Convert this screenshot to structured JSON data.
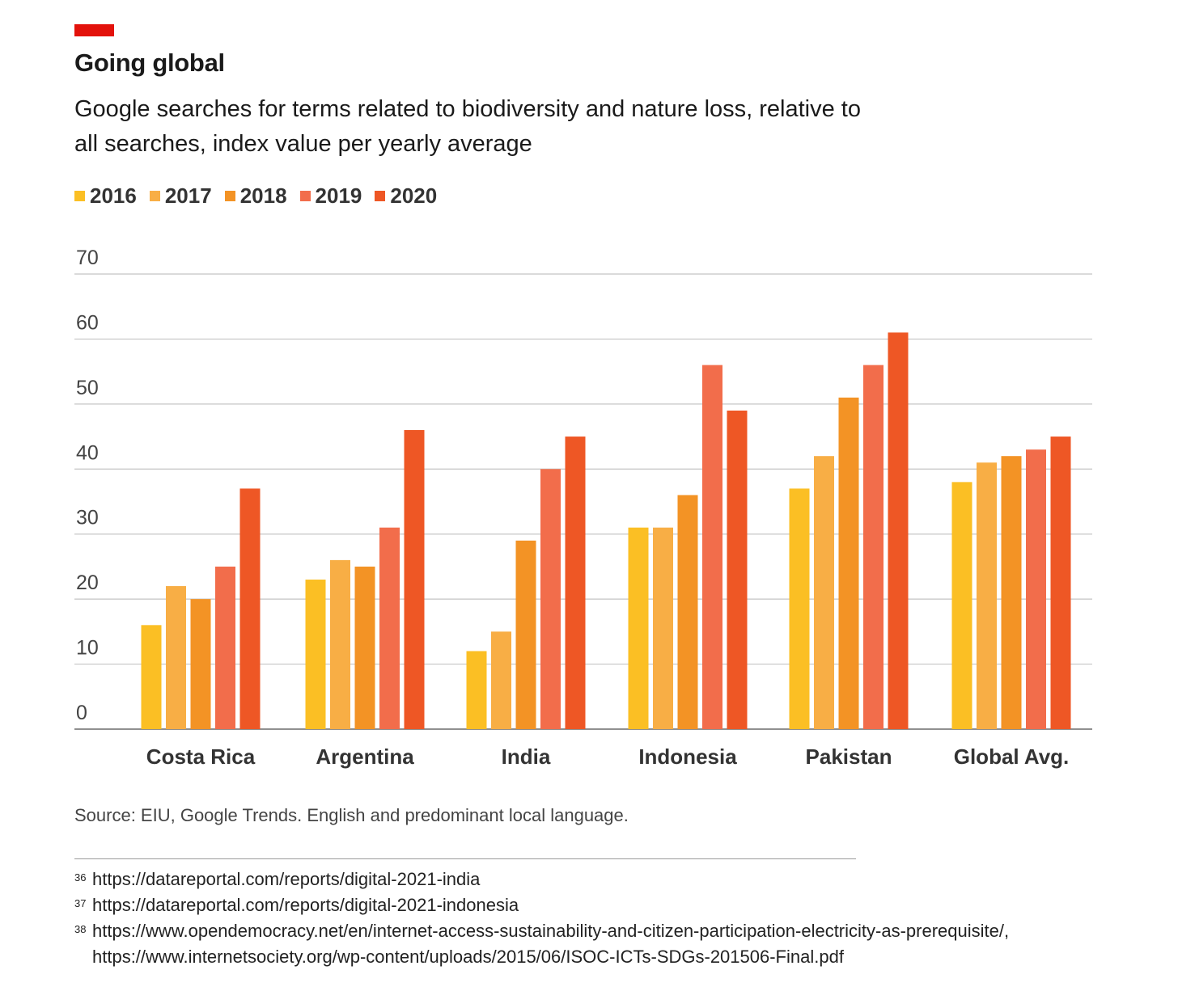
{
  "header": {
    "title": "Going global",
    "subtitle": "Google searches for terms related to biodiversity and nature loss, relative to all searches, index value per yearly average",
    "accent_color": "#e3120b"
  },
  "legend": [
    {
      "label": "2016",
      "color": "#fbbf24"
    },
    {
      "label": "2017",
      "color": "#f8ae45"
    },
    {
      "label": "2018",
      "color": "#f39325"
    },
    {
      "label": "2019",
      "color": "#f26d4b"
    },
    {
      "label": "2020",
      "color": "#ee5725"
    }
  ],
  "chart_data": {
    "type": "bar",
    "categories": [
      "Costa Rica",
      "Argentina",
      "India",
      "Indonesia",
      "Pakistan",
      "Global Avg."
    ],
    "series": [
      {
        "name": "2016",
        "values": [
          16,
          23,
          12,
          31,
          37,
          38
        ]
      },
      {
        "name": "2017",
        "values": [
          22,
          26,
          15,
          31,
          42,
          41
        ]
      },
      {
        "name": "2018",
        "values": [
          20,
          25,
          29,
          36,
          51,
          42
        ]
      },
      {
        "name": "2019",
        "values": [
          25,
          31,
          40,
          56,
          56,
          43
        ]
      },
      {
        "name": "2020",
        "values": [
          37,
          46,
          45,
          49,
          61,
          45
        ]
      }
    ],
    "ylim": [
      0,
      70
    ],
    "yticks": [
      "0",
      "10",
      "20",
      "30",
      "40",
      "50",
      "60",
      "70"
    ],
    "grid": true,
    "legend_position": "top-left"
  },
  "source": "Source: EIU, Google Trends. English and predominant local language.",
  "footnotes": [
    {
      "num": "36",
      "text": "https://datareportal.com/reports/digital-2021-india"
    },
    {
      "num": "37",
      "text": "https://datareportal.com/reports/digital-2021-indonesia"
    },
    {
      "num": "38",
      "text": "https://www.opendemocracy.net/en/internet-access-sustainability-and-citizen-participation-electricity-as-prerequisite/, https://www.internetsociety.org/wp-content/uploads/2015/06/ISOC-ICTs-SDGs-201506-Final.pdf"
    }
  ]
}
